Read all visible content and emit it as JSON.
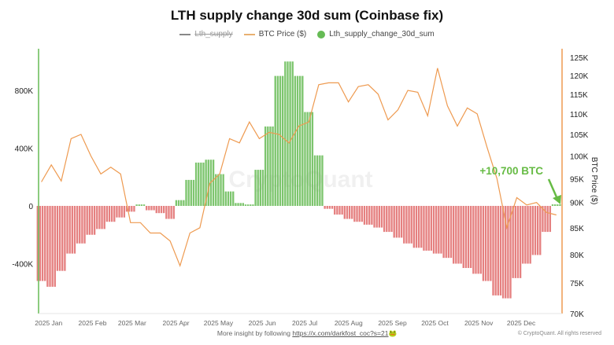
{
  "chart_data": {
    "type": "bar+line",
    "title": "LTH supply change 30d sum (Coinbase fix)",
    "legend": [
      {
        "name": "Lth_supply",
        "color": "#888888",
        "hidden": true
      },
      {
        "name": "BTC Price ($)",
        "color": "#e8a060"
      },
      {
        "name": "Lth_supply_change_30d_sum",
        "color": "#66bb55"
      }
    ],
    "legend_placement": "top-center",
    "colors": {
      "positive": "#66bb55",
      "negative": "#e06a6a",
      "price": "#ee9a50",
      "left_axis": "#66bb55",
      "right_axis": "#ee9a50",
      "annotation": "#66bb44"
    },
    "x": [
      "2024-12-28",
      "2025-01-04",
      "2025-01-11",
      "2025-01-18",
      "2025-01-25",
      "2025-02-01",
      "2025-02-08",
      "2025-02-15",
      "2025-02-22",
      "2025-03-01",
      "2025-03-08",
      "2025-03-15",
      "2025-03-22",
      "2025-03-29",
      "2025-04-05",
      "2025-04-12",
      "2025-04-19",
      "2025-04-26",
      "2025-05-03",
      "2025-05-10",
      "2025-05-17",
      "2025-05-24",
      "2025-05-31",
      "2025-06-07",
      "2025-06-14",
      "2025-06-21",
      "2025-06-28",
      "2025-07-05",
      "2025-07-12",
      "2025-07-19",
      "2025-07-26",
      "2025-08-02",
      "2025-08-09",
      "2025-08-16",
      "2025-08-23",
      "2025-08-30",
      "2025-09-06",
      "2025-09-13",
      "2025-09-20",
      "2025-09-27",
      "2025-10-04",
      "2025-10-11",
      "2025-10-18",
      "2025-10-25",
      "2025-11-01",
      "2025-11-08",
      "2025-11-15",
      "2025-11-22",
      "2025-11-29",
      "2025-12-06",
      "2025-12-13",
      "2025-12-20",
      "2025-12-27"
    ],
    "series": [
      {
        "name": "Lth_supply_change_30d_sum",
        "type": "bar",
        "axis": "left",
        "values": [
          -520000,
          -560000,
          -450000,
          -330000,
          -260000,
          -200000,
          -160000,
          -110000,
          -80000,
          -40000,
          10000,
          -30000,
          -50000,
          -90000,
          40000,
          180000,
          300000,
          320000,
          220000,
          100000,
          20000,
          10000,
          250000,
          550000,
          900000,
          1000000,
          900000,
          650000,
          350000,
          -20000,
          -60000,
          -90000,
          -110000,
          -130000,
          -150000,
          -180000,
          -220000,
          -260000,
          -290000,
          -310000,
          -330000,
          -360000,
          -400000,
          -430000,
          -470000,
          -520000,
          -620000,
          -640000,
          -500000,
          -400000,
          -340000,
          -180000,
          10700
        ]
      },
      {
        "name": "BTC Price ($)",
        "type": "line",
        "axis": "right",
        "values": [
          94300,
          98000,
          94500,
          104000,
          105000,
          100000,
          96000,
          97500,
          96000,
          86000,
          86000,
          84000,
          84000,
          82500,
          78000,
          84000,
          85000,
          94000,
          96000,
          104000,
          103000,
          108000,
          104000,
          105500,
          105000,
          103000,
          107000,
          108000,
          117500,
          118000,
          118000,
          113000,
          117000,
          117500,
          115000,
          108500,
          111000,
          116000,
          115500,
          109500,
          122000,
          112000,
          107000,
          111500,
          110000,
          102000,
          95000,
          85000,
          91000,
          89500,
          90000,
          88000,
          87500
        ]
      }
    ],
    "x_range": [
      "2024-12-26",
      "2025-12-31"
    ],
    "x_ticks": [
      "2025 Jan",
      "2025 Feb",
      "2025 Mar",
      "2025 Apr",
      "2025 May",
      "2025 Jun",
      "2025 Jul",
      "2025 Aug",
      "2025 Sep",
      "2025 Oct",
      "2025 Nov",
      "2025 Dec"
    ],
    "y_left": {
      "range": [
        -700000,
        1100000
      ],
      "ticks": [
        -400000,
        0,
        400000,
        800000
      ],
      "tick_labels": [
        "-400K",
        "0",
        "400K",
        "800K"
      ]
    },
    "y_right": {
      "label": "BTC Price ($)",
      "scale": "log",
      "range": [
        70000,
        128000
      ],
      "ticks": [
        70000,
        75000,
        80000,
        85000,
        90000,
        95000,
        100000,
        105000,
        110000,
        115000,
        120000,
        125000
      ],
      "tick_labels": [
        "70K",
        "75K",
        "80K",
        "85K",
        "90K",
        "95K",
        "100K",
        "105K",
        "110K",
        "115K",
        "120K",
        "125K"
      ]
    },
    "grid": false,
    "annotation": "+10,700 BTC",
    "watermark": "CryptoQuant"
  },
  "footer": {
    "text": "More insight by following ",
    "link": "https://x.com/darkfost_coc?s=21",
    "emoji": "🐸",
    "copyright": "© CryptoQuant. All rights reserved"
  }
}
